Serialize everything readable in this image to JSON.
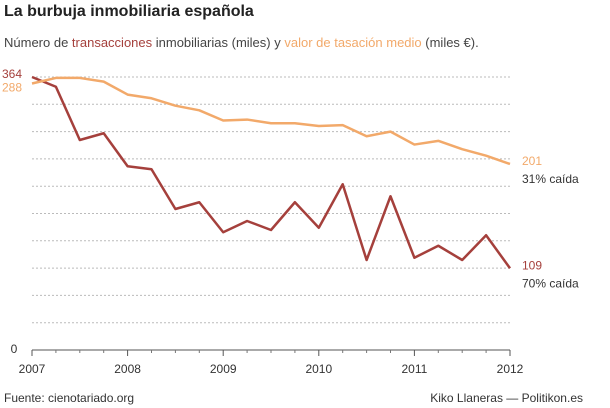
{
  "chart_data": {
    "type": "line",
    "title": "La burbuja inmobiliaria española",
    "subtitle_parts": [
      "Número de ",
      " inmobiliarias (miles) y ",
      " (miles €)."
    ],
    "x": [
      2007,
      2007.25,
      2007.5,
      2007.75,
      2008,
      2008.25,
      2008.5,
      2008.75,
      2009,
      2009.25,
      2009.5,
      2009.75,
      2010,
      2010.25,
      2010.5,
      2010.75,
      2011,
      2011.25,
      2011.5,
      2011.75,
      2012
    ],
    "xlim": [
      2007,
      2012
    ],
    "xticks": [
      2007,
      2008,
      2009,
      2010,
      2011,
      2012
    ],
    "ylim": [
      0,
      364
    ],
    "yticks": [
      0
    ],
    "y2lim": [
      0,
      295
    ],
    "grid": true,
    "series": [
      {
        "name": "transacciones",
        "color": "#a5403c",
        "values": [
          364,
          351,
          280,
          289,
          245,
          241,
          188,
          197,
          157,
          172,
          160,
          197,
          163,
          221,
          120,
          205,
          123,
          139,
          120,
          153,
          109
        ]
      },
      {
        "name": "valor de tasación medio",
        "color": "#f2a96a",
        "axis": "y2",
        "values": [
          288,
          294,
          294,
          290,
          276,
          272,
          264,
          259,
          248,
          249,
          245,
          245,
          242,
          243,
          231,
          236,
          222,
          226,
          217,
          210,
          201
        ]
      }
    ],
    "annotations": [
      "70% caída",
      "31% caída"
    ],
    "source": "Fuente: cienotariado.org",
    "credit": "Kiko Llaneras — Politikon.es"
  }
}
